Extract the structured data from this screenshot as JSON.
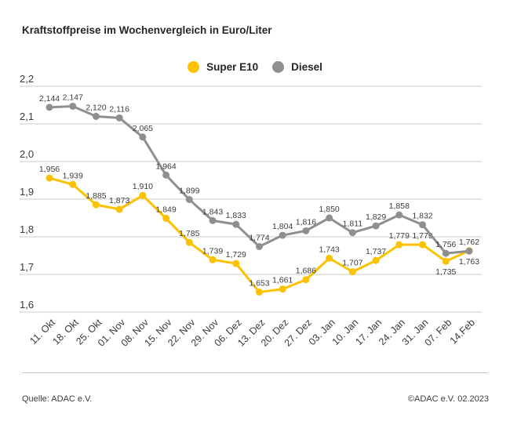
{
  "title": "Kraftstoffpreise im Wochenvergleich in Euro/Liter",
  "legend": {
    "items": [
      {
        "label": "Super E10",
        "color": "#FCC200"
      },
      {
        "label": "Diesel",
        "color": "#8F8F8F"
      }
    ]
  },
  "footer": {
    "source": "Quelle: ADAC e.V.",
    "copyright": "©ADAC e.V. 02.2023"
  },
  "chart_data": {
    "type": "line",
    "title": "Kraftstoffpreise im Wochenvergleich in Euro/Liter",
    "unit": "Euro/Liter",
    "grid": true,
    "legend_position": "top-center",
    "ylim": [
      1.6,
      2.2
    ],
    "y_ticks": [
      "2,2",
      "2,1",
      "2,0",
      "1,9",
      "1,8",
      "1,7",
      "1,6"
    ],
    "x_labels": [
      "11. Okt",
      "18. Okt",
      "25. Okt",
      "01. Nov",
      "08. Nov",
      "15. Nov",
      "22. Nov",
      "29. Nov",
      "06. Dez",
      "13. Dez",
      "20. Dez",
      "27. Dez",
      "03. Jan",
      "10. Jan",
      "17. Jan",
      "24. Jan",
      "31. Jan",
      "07. Feb",
      "14.Feb"
    ],
    "series": [
      {
        "name": "Super E10",
        "color": "#FCC200",
        "values": [
          1.956,
          1.939,
          1.885,
          1.873,
          1.91,
          1.849,
          1.785,
          1.739,
          1.729,
          1.653,
          1.661,
          1.686,
          1.743,
          1.707,
          1.737,
          1.779,
          1.779,
          1.735,
          1.763
        ],
        "value_labels": [
          "1,956",
          "1,939",
          "1,885",
          "1,873",
          "1,910",
          "1,849",
          "1,785",
          "1,739",
          "1,729",
          "1,653",
          "1,661",
          "1,686",
          "1,743",
          "1,707",
          "1,737",
          "1,779",
          "1,779",
          "1,735",
          "1,763"
        ],
        "labels_below_indices": [
          17,
          18
        ]
      },
      {
        "name": "Diesel",
        "color": "#8F8F8F",
        "values": [
          2.144,
          2.147,
          2.12,
          2.116,
          2.065,
          1.964,
          1.899,
          1.843,
          1.833,
          1.774,
          1.804,
          1.816,
          1.85,
          1.811,
          1.829,
          1.858,
          1.832,
          1.756,
          1.762
        ],
        "value_labels": [
          "2,144",
          "2,147",
          "2,120",
          "2,116",
          "2,065",
          "1,964",
          "1,899",
          "1,843",
          "1,833",
          "1,774",
          "1,804",
          "1,816",
          "1,850",
          "1,811",
          "1,829",
          "1,858",
          "1,832",
          "1,756",
          "1,762"
        ],
        "labels_below_indices": []
      }
    ]
  }
}
